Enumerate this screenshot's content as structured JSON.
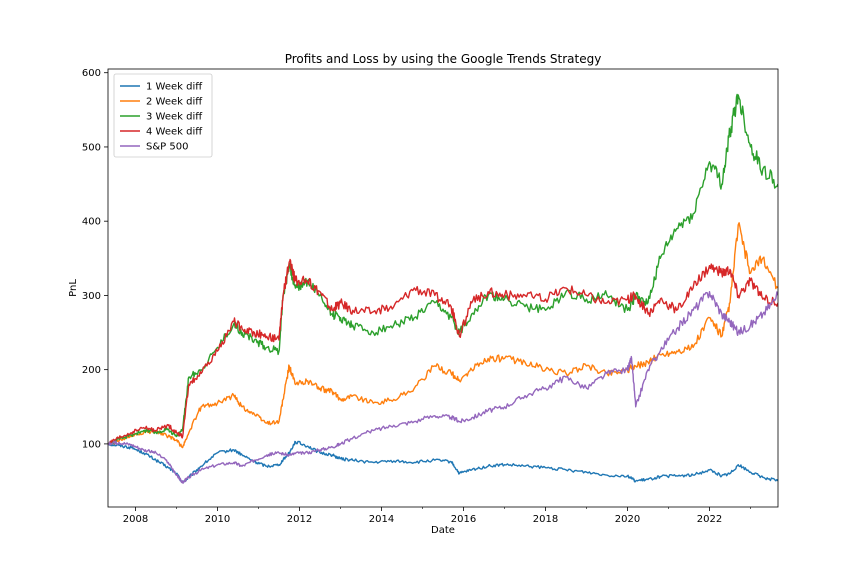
{
  "chart_data": {
    "type": "line",
    "title": "Profits and Loss by using the Google Trends Strategy",
    "xlabel": "Date",
    "ylabel": "PnL",
    "xlim": [
      2007.33,
      2023.67
    ],
    "ylim": [
      15,
      605
    ],
    "x_ticks": [
      2008,
      2010,
      2012,
      2014,
      2016,
      2018,
      2020,
      2022
    ],
    "x_tick_labels": [
      "2008",
      "2010",
      "2012",
      "2014",
      "2016",
      "2018",
      "2020",
      "2022"
    ],
    "y_ticks": [
      100,
      200,
      300,
      400,
      500,
      600
    ],
    "y_tick_labels": [
      "100",
      "200",
      "300",
      "400",
      "500",
      "600"
    ],
    "grid": false,
    "legend_position": "top-left",
    "series": [
      {
        "name": "1 Week diff",
        "color": "#1f77b4",
        "x": [
          2007.33,
          2007.6,
          2007.9,
          2008.2,
          2008.5,
          2008.8,
          2009.0,
          2009.15,
          2009.3,
          2009.6,
          2010.0,
          2010.4,
          2010.6,
          2010.9,
          2011.2,
          2011.5,
          2011.75,
          2011.9,
          2012.2,
          2012.5,
          2012.8,
          2013.0,
          2013.3,
          2013.8,
          2014.3,
          2014.8,
          2015.3,
          2015.7,
          2015.9,
          2016.2,
          2016.6,
          2017.0,
          2017.5,
          2018.0,
          2018.5,
          2019.0,
          2019.5,
          2020.0,
          2020.2,
          2020.5,
          2020.8,
          2021.2,
          2021.6,
          2022.0,
          2022.3,
          2022.5,
          2022.7,
          2023.0,
          2023.3,
          2023.67
        ],
        "values": [
          100,
          98,
          95,
          88,
          78,
          68,
          60,
          48,
          55,
          70,
          88,
          92,
          85,
          76,
          70,
          72,
          88,
          103,
          97,
          88,
          85,
          80,
          78,
          75,
          77,
          75,
          78,
          76,
          60,
          65,
          70,
          72,
          70,
          68,
          65,
          62,
          58,
          57,
          50,
          52,
          56,
          57,
          58,
          65,
          57,
          60,
          72,
          62,
          55,
          50
        ]
      },
      {
        "name": "2 Week diff",
        "color": "#ff7f0e",
        "x": [
          2007.33,
          2007.6,
          2007.9,
          2008.2,
          2008.5,
          2008.8,
          2009.0,
          2009.15,
          2009.3,
          2009.6,
          2010.0,
          2010.4,
          2010.6,
          2010.9,
          2011.2,
          2011.5,
          2011.6,
          2011.75,
          2011.9,
          2012.2,
          2012.5,
          2012.8,
          2013.0,
          2013.3,
          2013.8,
          2014.3,
          2014.8,
          2015.3,
          2015.7,
          2015.9,
          2016.2,
          2016.6,
          2017.0,
          2017.5,
          2018.0,
          2018.5,
          2019.0,
          2019.5,
          2020.0,
          2020.2,
          2020.5,
          2020.8,
          2021.2,
          2021.6,
          2022.0,
          2022.3,
          2022.5,
          2022.7,
          2023.0,
          2023.3,
          2023.67
        ],
        "values": [
          100,
          104,
          110,
          115,
          118,
          110,
          105,
          95,
          115,
          150,
          155,
          165,
          150,
          140,
          128,
          130,
          160,
          205,
          180,
          185,
          175,
          170,
          160,
          165,
          155,
          160,
          175,
          205,
          195,
          185,
          200,
          215,
          215,
          210,
          200,
          195,
          205,
          195,
          200,
          205,
          210,
          220,
          225,
          230,
          270,
          245,
          290,
          395,
          330,
          350,
          310
        ]
      },
      {
        "name": "3 Week diff",
        "color": "#2ca02c",
        "x": [
          2007.33,
          2007.6,
          2007.9,
          2008.2,
          2008.5,
          2008.8,
          2009.0,
          2009.15,
          2009.3,
          2009.6,
          2010.0,
          2010.4,
          2010.6,
          2010.9,
          2011.2,
          2011.5,
          2011.6,
          2011.75,
          2011.9,
          2012.2,
          2012.5,
          2012.8,
          2013.0,
          2013.3,
          2013.8,
          2014.3,
          2014.8,
          2015.3,
          2015.7,
          2015.9,
          2016.2,
          2016.6,
          2017.0,
          2017.5,
          2018.0,
          2018.5,
          2019.0,
          2019.5,
          2020.0,
          2020.2,
          2020.5,
          2020.8,
          2021.2,
          2021.6,
          2022.0,
          2022.3,
          2022.5,
          2022.7,
          2023.0,
          2023.3,
          2023.67
        ],
        "values": [
          100,
          106,
          112,
          118,
          115,
          120,
          110,
          120,
          190,
          200,
          230,
          262,
          250,
          240,
          230,
          225,
          300,
          340,
          310,
          320,
          300,
          275,
          270,
          260,
          250,
          260,
          270,
          290,
          270,
          250,
          275,
          300,
          295,
          285,
          280,
          305,
          295,
          300,
          280,
          300,
          290,
          350,
          390,
          410,
          480,
          450,
          520,
          570,
          500,
          470,
          450
        ]
      },
      {
        "name": "4 Week diff",
        "color": "#d62728",
        "x": [
          2007.33,
          2007.6,
          2007.9,
          2008.2,
          2008.5,
          2008.8,
          2009.0,
          2009.15,
          2009.3,
          2009.6,
          2010.0,
          2010.4,
          2010.6,
          2010.9,
          2011.2,
          2011.5,
          2011.6,
          2011.75,
          2011.9,
          2012.2,
          2012.5,
          2012.8,
          2013.0,
          2013.3,
          2013.8,
          2014.3,
          2014.8,
          2015.3,
          2015.7,
          2015.9,
          2016.2,
          2016.6,
          2017.0,
          2017.5,
          2018.0,
          2018.5,
          2019.0,
          2019.5,
          2020.0,
          2020.2,
          2020.5,
          2020.8,
          2021.2,
          2021.6,
          2022.0,
          2022.3,
          2022.5,
          2022.7,
          2023.0,
          2023.3,
          2023.67
        ],
        "values": [
          100,
          108,
          115,
          122,
          118,
          125,
          115,
          110,
          180,
          195,
          225,
          265,
          255,
          250,
          245,
          240,
          300,
          345,
          320,
          318,
          305,
          280,
          290,
          280,
          278,
          285,
          310,
          300,
          285,
          245,
          290,
          305,
          300,
          300,
          295,
          310,
          300,
          290,
          295,
          300,
          275,
          295,
          280,
          310,
          340,
          330,
          335,
          300,
          320,
          295,
          290
        ]
      },
      {
        "name": "S&P 500",
        "color": "#9467bd",
        "x": [
          2007.33,
          2007.6,
          2007.9,
          2008.2,
          2008.5,
          2008.8,
          2009.0,
          2009.15,
          2009.3,
          2009.6,
          2010.0,
          2010.4,
          2010.6,
          2010.9,
          2011.2,
          2011.5,
          2011.75,
          2011.9,
          2012.2,
          2012.5,
          2012.8,
          2013.0,
          2013.3,
          2013.8,
          2014.3,
          2014.8,
          2015.3,
          2015.7,
          2015.9,
          2016.2,
          2016.6,
          2017.0,
          2017.5,
          2018.0,
          2018.5,
          2019.0,
          2019.5,
          2020.0,
          2020.1,
          2020.2,
          2020.5,
          2020.8,
          2021.2,
          2021.6,
          2022.0,
          2022.3,
          2022.5,
          2022.7,
          2023.0,
          2023.3,
          2023.67
        ],
        "values": [
          100,
          102,
          99,
          92,
          88,
          75,
          58,
          48,
          55,
          65,
          72,
          75,
          70,
          78,
          85,
          88,
          85,
          87,
          88,
          92,
          96,
          100,
          108,
          118,
          125,
          130,
          138,
          136,
          130,
          135,
          145,
          150,
          165,
          175,
          190,
          175,
          195,
          200,
          215,
          150,
          200,
          225,
          255,
          280,
          305,
          275,
          265,
          250,
          260,
          275,
          300
        ]
      }
    ]
  }
}
